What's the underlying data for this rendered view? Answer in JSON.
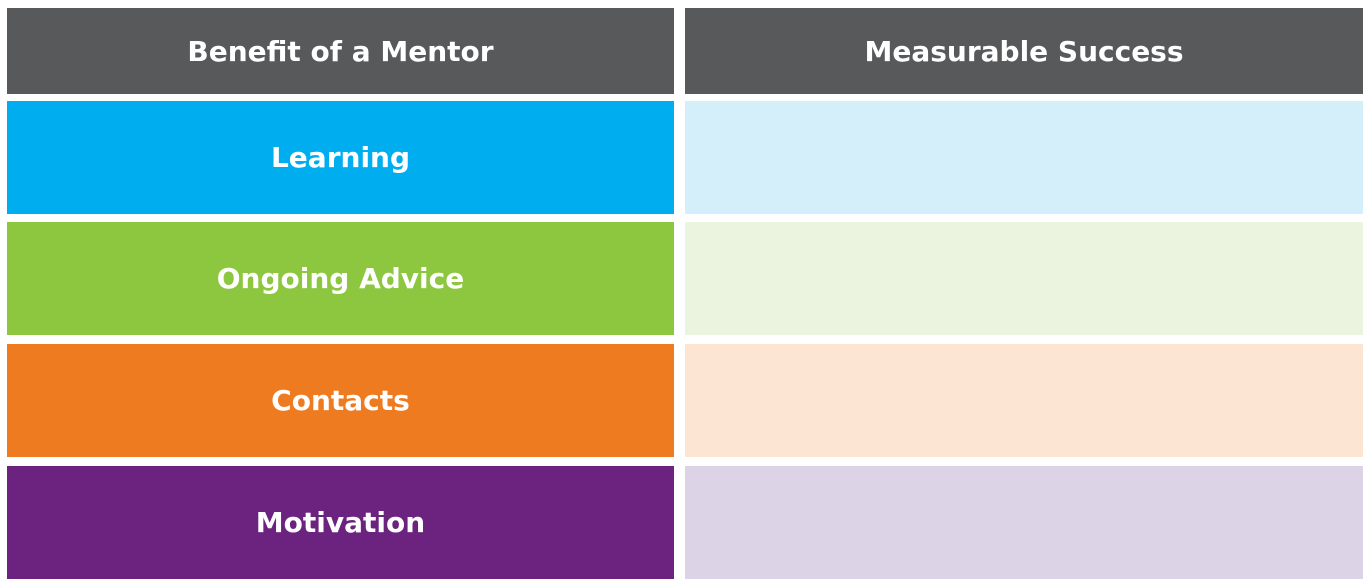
{
  "table": {
    "headers": [
      "Benefit of a Mentor",
      "Measurable Success"
    ],
    "rows": [
      [
        "Learning"
      ],
      [
        "Ongoing Advice"
      ],
      [
        "Contacts"
      ],
      [
        "Motivation"
      ]
    ]
  }
}
